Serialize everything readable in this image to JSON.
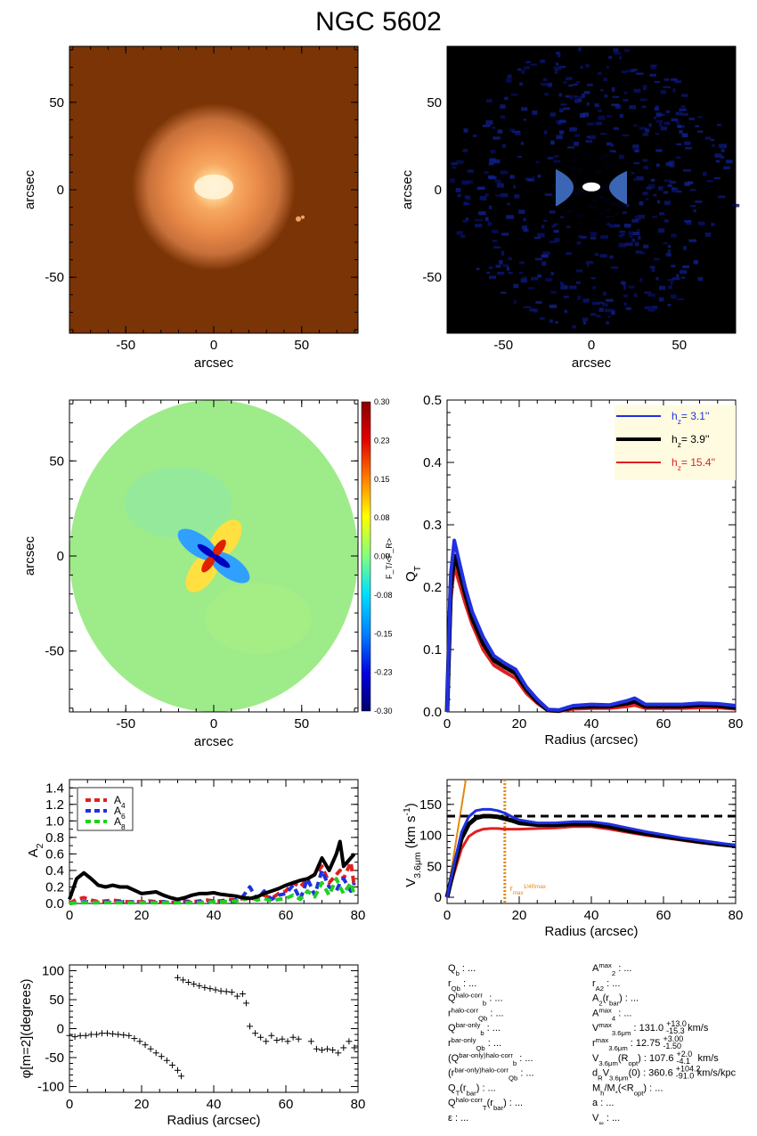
{
  "title": "NGC 5602",
  "chart_data": [
    {
      "type": "image",
      "panel": "stellar-image",
      "xlabel": "arcsec",
      "ylabel": "arcsec",
      "xlim": [
        -82,
        82
      ],
      "ylim": [
        -82,
        82
      ],
      "xticks": [
        "-50",
        "0",
        "50"
      ],
      "yticks": [
        "50",
        "0",
        "-50"
      ],
      "colormap": "orange"
    },
    {
      "type": "image",
      "panel": "residual-image",
      "xlabel": "arcsec",
      "ylabel": "arcsec",
      "xlim": [
        -82,
        82
      ],
      "ylim": [
        -82,
        82
      ],
      "xticks": [
        "-50",
        "0",
        "50"
      ],
      "yticks": [
        "50",
        "0",
        "-50"
      ],
      "colormap": "blue"
    },
    {
      "type": "heatmap",
      "panel": "force-ratio-map",
      "xlabel": "arcsec",
      "ylabel": "arcsec",
      "xlim": [
        -82,
        82
      ],
      "ylim": [
        -82,
        82
      ],
      "xticks": [
        "-50",
        "0",
        "50"
      ],
      "yticks": [
        "50",
        "0",
        "-50"
      ],
      "colorbar_label": "F_T/<F_R>",
      "colorbar_ticks": [
        "0.30",
        "0.23",
        "0.15",
        "0.08",
        "0.00",
        "-0.08",
        "-0.15",
        "-0.23",
        "-0.30"
      ]
    },
    {
      "type": "line",
      "panel": "qt-profile",
      "xlabel": "Radius (arcsec)",
      "ylabel": "Q_T",
      "xlim": [
        0,
        80
      ],
      "ylim": [
        0,
        0.5
      ],
      "xticks": [
        "0",
        "20",
        "40",
        "60",
        "80"
      ],
      "yticks": [
        "0.5",
        "0.4",
        "0.3",
        "0.2",
        "0.1",
        "0.0"
      ],
      "legend": [
        {
          "label": "h_z=",
          "value": "3.1''",
          "color": "#2030e0"
        },
        {
          "label": "h_z=",
          "value": "3.9''",
          "color": "#000000"
        },
        {
          "label": "h_z=",
          "value": "15.4''",
          "color": "#e02020"
        }
      ],
      "x": [
        0,
        1,
        2,
        3,
        5,
        7,
        10,
        13,
        16,
        19,
        22,
        25,
        28,
        31,
        35,
        40,
        45,
        50,
        52,
        55,
        60,
        65,
        70,
        75,
        80
      ],
      "series": [
        {
          "name": "3.1''",
          "color": "#2030e0",
          "values": [
            0.0,
            0.22,
            0.275,
            0.25,
            0.2,
            0.16,
            0.12,
            0.09,
            0.078,
            0.068,
            0.04,
            0.02,
            0.004,
            0.003,
            0.01,
            0.012,
            0.011,
            0.018,
            0.022,
            0.012,
            0.012,
            0.012,
            0.014,
            0.013,
            0.01
          ]
        },
        {
          "name": "3.9''",
          "color": "#000000",
          "values": [
            0.0,
            0.2,
            0.25,
            0.235,
            0.19,
            0.15,
            0.11,
            0.083,
            0.072,
            0.062,
            0.036,
            0.017,
            0.003,
            0.002,
            0.008,
            0.009,
            0.009,
            0.014,
            0.017,
            0.009,
            0.009,
            0.009,
            0.011,
            0.01,
            0.007
          ]
        },
        {
          "name": "15.4''",
          "color": "#e02020",
          "values": [
            0.0,
            0.18,
            0.235,
            0.215,
            0.175,
            0.14,
            0.1,
            0.075,
            0.064,
            0.054,
            0.03,
            0.014,
            0.002,
            0.001,
            0.005,
            0.006,
            0.006,
            0.009,
            0.011,
            0.006,
            0.006,
            0.006,
            0.007,
            0.007,
            0.005
          ]
        }
      ]
    },
    {
      "type": "line",
      "panel": "fourier-amplitudes",
      "ylabel": "A_2",
      "xlim": [
        0,
        80
      ],
      "ylim": [
        0,
        1.5
      ],
      "xticks": [
        "0",
        "20",
        "40",
        "60",
        "80"
      ],
      "yticks": [
        "1.4",
        "1.2",
        "1.0",
        "0.8",
        "0.6",
        "0.4",
        "0.2",
        "0.0"
      ],
      "legend": [
        {
          "label": "A",
          "sub": "4",
          "color": "#e02020"
        },
        {
          "label": "A",
          "sub": "6",
          "color": "#2030e0"
        },
        {
          "label": "A",
          "sub": "8",
          "color": "#20d020"
        }
      ],
      "x": [
        0,
        2,
        4,
        6,
        8,
        10,
        12,
        14,
        16,
        18,
        20,
        22,
        24,
        26,
        28,
        30,
        32,
        34,
        36,
        38,
        40,
        42,
        44,
        46,
        48,
        50,
        52,
        54,
        56,
        58,
        60,
        62,
        64,
        66,
        68,
        70,
        72,
        74,
        75,
        76,
        78,
        79
      ],
      "series": [
        {
          "name": "A2",
          "color": "#000000",
          "style": "solid",
          "values": [
            0.05,
            0.3,
            0.37,
            0.3,
            0.22,
            0.2,
            0.22,
            0.2,
            0.2,
            0.16,
            0.12,
            0.13,
            0.14,
            0.1,
            0.07,
            0.05,
            0.07,
            0.1,
            0.12,
            0.12,
            0.13,
            0.11,
            0.1,
            0.09,
            0.07,
            0.06,
            0.08,
            0.12,
            0.15,
            0.18,
            0.22,
            0.25,
            0.28,
            0.3,
            0.35,
            0.55,
            0.4,
            0.6,
            0.75,
            0.45,
            0.55,
            0.6
          ]
        },
        {
          "name": "A4",
          "color": "#e02020",
          "style": "dashed",
          "values": [
            0.0,
            0.05,
            0.07,
            0.04,
            0.02,
            0.03,
            0.04,
            0.03,
            0.02,
            0.02,
            0.02,
            0.03,
            0.02,
            0.02,
            0.01,
            0.02,
            0.03,
            0.02,
            0.03,
            0.04,
            0.03,
            0.03,
            0.05,
            0.04,
            0.06,
            0.05,
            0.08,
            0.1,
            0.06,
            0.12,
            0.15,
            0.25,
            0.2,
            0.3,
            0.35,
            0.45,
            0.25,
            0.35,
            0.4,
            0.3,
            0.5,
            0.2
          ]
        },
        {
          "name": "A6",
          "color": "#2030e0",
          "style": "dashed",
          "values": [
            0.0,
            0.01,
            0.02,
            0.01,
            0.01,
            0.02,
            0.01,
            0.02,
            0.01,
            0.02,
            0.01,
            0.02,
            0.01,
            0.02,
            0.01,
            0.01,
            0.02,
            0.01,
            0.02,
            0.01,
            0.02,
            0.03,
            0.02,
            0.04,
            0.08,
            0.2,
            0.05,
            0.15,
            0.05,
            0.1,
            0.12,
            0.22,
            0.05,
            0.3,
            0.1,
            0.4,
            0.2,
            0.15,
            0.25,
            0.3,
            0.15,
            0.25
          ]
        },
        {
          "name": "A8",
          "color": "#20d020",
          "style": "dashed",
          "values": [
            0.0,
            0.01,
            0.01,
            0.01,
            0.01,
            0.01,
            0.01,
            0.01,
            0.01,
            0.01,
            0.01,
            0.01,
            0.01,
            0.01,
            0.01,
            0.01,
            0.01,
            0.01,
            0.01,
            0.01,
            0.02,
            0.02,
            0.02,
            0.03,
            0.04,
            0.08,
            0.04,
            0.06,
            0.03,
            0.05,
            0.06,
            0.1,
            0.05,
            0.15,
            0.08,
            0.25,
            0.1,
            0.3,
            0.2,
            0.12,
            0.25,
            0.1
          ]
        }
      ]
    },
    {
      "type": "line",
      "panel": "rotation-curve",
      "xlabel": "Radius (arcsec)",
      "ylabel": "V_3.6μm (km s^-1)",
      "xlim": [
        0,
        80
      ],
      "ylim": [
        -10,
        190
      ],
      "xticks": [
        "0",
        "20",
        "40",
        "60",
        "80"
      ],
      "yticks": [
        "150",
        "100",
        "50",
        "0"
      ],
      "annotation": "r_max^(1/4 R_max)",
      "vmax_line": 131,
      "r_vline": 16,
      "x": [
        0,
        2,
        4,
        6,
        8,
        10,
        12,
        14,
        16,
        18,
        20,
        25,
        30,
        35,
        40,
        45,
        50,
        55,
        60,
        65,
        70,
        75,
        80
      ],
      "series": [
        {
          "name": "3.1''",
          "color": "#2030e0",
          "values": [
            0,
            55,
            105,
            130,
            140,
            142,
            142,
            140,
            136,
            130,
            125,
            120,
            120,
            122,
            122,
            118,
            112,
            106,
            101,
            96,
            92,
            88,
            84
          ]
        },
        {
          "name": "3.9''",
          "color": "#000000",
          "values": [
            0,
            50,
            95,
            118,
            128,
            131,
            131,
            130,
            127,
            124,
            120,
            117,
            117,
            118,
            118,
            114,
            108,
            103,
            98,
            94,
            90,
            86,
            83
          ]
        },
        {
          "name": "15.4''",
          "color": "#e02020",
          "values": [
            0,
            40,
            78,
            98,
            106,
            110,
            111,
            111,
            110,
            110,
            110,
            111,
            112,
            114,
            114,
            110,
            105,
            100,
            96,
            92,
            88,
            85,
            82
          ]
        }
      ]
    },
    {
      "type": "scatter",
      "panel": "phase-profile",
      "xlabel": "Radius (arcsec)",
      "ylabel": "φ[m=2](degrees)",
      "xlim": [
        0,
        80
      ],
      "ylim": [
        -110,
        110
      ],
      "xticks": [
        "0",
        "20",
        "40",
        "60",
        "80"
      ],
      "yticks": [
        "100",
        "50",
        "0",
        "-50",
        "-100"
      ],
      "points": [
        [
          0,
          -12
        ],
        [
          1.5,
          -14
        ],
        [
          3,
          -12
        ],
        [
          4.5,
          -12
        ],
        [
          6,
          -10
        ],
        [
          7.5,
          -10
        ],
        [
          9,
          -8
        ],
        [
          10.5,
          -8
        ],
        [
          12,
          -9
        ],
        [
          13.5,
          -10
        ],
        [
          15,
          -11
        ],
        [
          16.5,
          -12
        ],
        [
          18,
          -17
        ],
        [
          19.5,
          -22
        ],
        [
          21,
          -28
        ],
        [
          22.5,
          -35
        ],
        [
          24,
          -42
        ],
        [
          25.5,
          -48
        ],
        [
          27,
          -55
        ],
        [
          28.5,
          -63
        ],
        [
          30,
          -72
        ],
        [
          31,
          -82
        ],
        [
          30,
          88
        ],
        [
          31.5,
          84
        ],
        [
          33,
          80
        ],
        [
          34.5,
          77
        ],
        [
          36,
          74
        ],
        [
          37.5,
          71
        ],
        [
          39,
          69
        ],
        [
          40.5,
          67
        ],
        [
          42,
          65
        ],
        [
          43.5,
          64
        ],
        [
          45,
          63
        ],
        [
          46.5,
          56
        ],
        [
          48,
          60
        ],
        [
          49,
          44
        ],
        [
          50,
          4
        ],
        [
          51.5,
          -8
        ],
        [
          53,
          -15
        ],
        [
          54.5,
          -22
        ],
        [
          56,
          -12
        ],
        [
          57.5,
          -20
        ],
        [
          59,
          -18
        ],
        [
          60.5,
          -22
        ],
        [
          62,
          -15
        ],
        [
          63.5,
          -18
        ],
        [
          67,
          -22
        ],
        [
          68.5,
          -35
        ],
        [
          70,
          -37
        ],
        [
          71.5,
          -35
        ],
        [
          73,
          -37
        ],
        [
          74.5,
          -42
        ],
        [
          76,
          -33
        ],
        [
          77.5,
          -22
        ],
        [
          79,
          -33
        ]
      ]
    }
  ],
  "params_left": [
    {
      "label": "Q",
      "sub": "b",
      "text": " : ..."
    },
    {
      "label": "r",
      "sub": "Qb",
      "text": " : ..."
    },
    {
      "label": "Q",
      "sub": "b",
      "sup": "halo-corr",
      "text": " : ..."
    },
    {
      "label": "r",
      "sub": "Qb",
      "sup": "halo-corr",
      "text": " : ..."
    },
    {
      "label": "Q",
      "sub": "b",
      "sup": "bar-only",
      "text": " : ..."
    },
    {
      "label": "r",
      "sub": "Qb",
      "sup": "bar-only",
      "text": " : ..."
    },
    {
      "label": "(Q",
      "sub": "b",
      "sup": "bar-only)halo-corr",
      "text": " : ..."
    },
    {
      "label": "(r",
      "sub": "Qb",
      "sup": "bar-only)halo-corr",
      "text": " : ..."
    },
    {
      "label": "Q",
      "sub": "T",
      "text": "(r",
      "sub2": "bar",
      "text2": ") : ..."
    },
    {
      "label": "Q",
      "sub": "T",
      "sup": "halo-corr",
      "text": "(r",
      "sub2": "bar",
      "text2": ") : ..."
    },
    {
      "label": "ε",
      "text": " : ..."
    }
  ],
  "params_right": [
    {
      "label": "A",
      "sub": "2",
      "sup": "max",
      "text": " : ..."
    },
    {
      "label": "r",
      "sub": "A2",
      "text": " : ..."
    },
    {
      "label": "A",
      "sub": "2",
      "text": "(r",
      "sub2": "bar",
      "text2": ") : ..."
    },
    {
      "label": "A",
      "sub": "4",
      "sup": "max",
      "text": " : ..."
    },
    {
      "label": "V",
      "sub": "3.6μm",
      "sup": "max",
      "text": " :  131.0",
      "err": [
        "+13.0",
        "-15.3"
      ],
      "tail": " km/s"
    },
    {
      "label": "r",
      "sub": "3.6μm",
      "sup": "max",
      "text": " :  12.75",
      "err": [
        "+3.00",
        "-1.50"
      ],
      "tail": ""
    },
    {
      "label": "V",
      "sub": "3.6μm",
      "text": "(R",
      "sub2": "opt",
      "text2": ") :  107.6",
      "err": [
        "+2.0",
        "-4.1"
      ],
      "tail": " km/s"
    },
    {
      "label": "d",
      "sub": "R",
      "text": "V",
      "sub2": "3.6μm",
      "text2": "(0) :  360.6",
      "err": [
        "+104.2",
        "-91.0"
      ],
      "tail": " km/s/kpc"
    },
    {
      "label": "M",
      "sub": "h",
      "text": "/M",
      "sub2": "*",
      "text2": "(<R",
      "sub3": "opt",
      "text3": ") : ..."
    },
    {
      "label": "a",
      "text": " : ..."
    },
    {
      "label": "V",
      "sub": "∞",
      "text": " : ..."
    }
  ]
}
